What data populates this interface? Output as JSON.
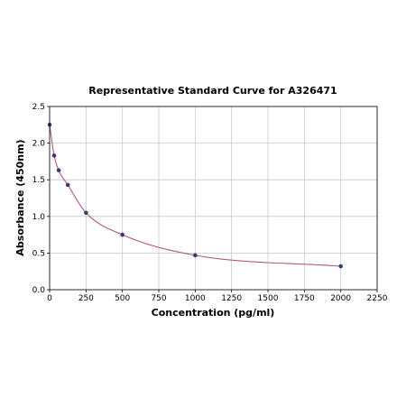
{
  "chart_data": {
    "type": "scatter",
    "title": "Representative Standard Curve for A326471",
    "xlabel": "Concentration (pg/ml)",
    "ylabel": "Absorbance (450nm)",
    "xlim": [
      0,
      2250
    ],
    "ylim": [
      0,
      2.5
    ],
    "x_ticks": [
      0,
      250,
      500,
      750,
      1000,
      1250,
      1500,
      1750,
      2000,
      2250
    ],
    "y_ticks": [
      0.0,
      0.5,
      1.0,
      1.5,
      2.0,
      2.5
    ],
    "x_tick_labels": [
      "0",
      "250",
      "500",
      "750",
      "1000",
      "1250",
      "1500",
      "1750",
      "2000",
      "2250"
    ],
    "y_tick_labels": [
      "0.0",
      "0.5",
      "1.0",
      "1.5",
      "2.0",
      "2.5"
    ],
    "grid": true,
    "series": [
      {
        "points": [
          {
            "x": 0,
            "y": 2.25
          },
          {
            "x": 31.25,
            "y": 1.83
          },
          {
            "x": 62.5,
            "y": 1.63
          },
          {
            "x": 125,
            "y": 1.43
          },
          {
            "x": 250,
            "y": 1.05
          },
          {
            "x": 500,
            "y": 0.75
          },
          {
            "x": 1000,
            "y": 0.47
          },
          {
            "x": 2000,
            "y": 0.32
          }
        ],
        "color": "#3b3b6e"
      }
    ],
    "fit_curve_color": "#b05a78"
  }
}
